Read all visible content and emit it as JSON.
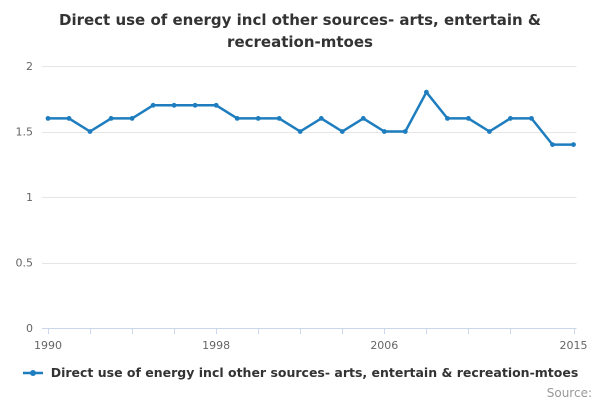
{
  "title_line1": "Direct use of energy incl other sources- arts, entertain &",
  "title_line2": "recreation-mtoes",
  "legend": {
    "label": "Direct use of energy incl other sources- arts, entertain & recreation-mtoes"
  },
  "source": {
    "label": "Source:"
  },
  "colors": {
    "line": "#1e7dbe",
    "grid": "#e6e6e6",
    "axis_line": "#ccd6eb",
    "tick_label": "#666666",
    "title_text": "#333333",
    "legend_text": "#333333",
    "source_text": "#999999"
  },
  "chart_data": {
    "type": "line",
    "title": "Direct use of energy incl other sources- arts, entertain & recreation-mtoes",
    "xlabel": "",
    "ylabel": "",
    "x": [
      1990,
      1991,
      1992,
      1993,
      1994,
      1995,
      1996,
      1997,
      1998,
      1999,
      2000,
      2001,
      2002,
      2003,
      2004,
      2005,
      2006,
      2007,
      2008,
      2009,
      2010,
      2011,
      2012,
      2013,
      2014,
      2015
    ],
    "series": [
      {
        "name": "Direct use of energy incl other sources- arts, entertain & recreation-mtoes",
        "values": [
          1.6,
          1.6,
          1.5,
          1.6,
          1.6,
          1.7,
          1.7,
          1.7,
          1.7,
          1.6,
          1.6,
          1.6,
          1.5,
          1.6,
          1.5,
          1.6,
          1.5,
          1.5,
          1.8,
          1.6,
          1.6,
          1.5,
          1.6,
          1.6,
          1.4,
          1.4
        ]
      }
    ],
    "ylim": [
      0,
      2
    ],
    "yticks": [
      0,
      0.5,
      1,
      1.5,
      2
    ],
    "xticks": [
      1990,
      1992,
      1994,
      1996,
      1998,
      2000,
      2002,
      2004,
      2006,
      2008,
      2010,
      2012,
      2015
    ],
    "xtick_labels": [
      1990,
      1998,
      2006,
      2015
    ],
    "grid": true,
    "legend_position": "bottom",
    "marker": "circle"
  }
}
